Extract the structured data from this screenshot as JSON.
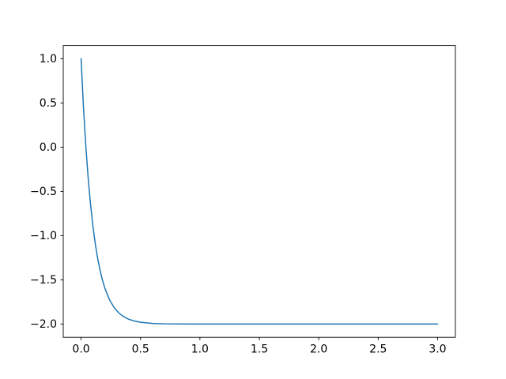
{
  "chart_data": {
    "type": "line",
    "title": "",
    "xlabel": "",
    "ylabel": "",
    "grid": false,
    "legend": null,
    "background_color": "#ffffff",
    "spine_color": "#000000",
    "line_color": "#1f77b4",
    "xlim": [
      -0.15,
      3.15
    ],
    "ylim": [
      -2.15,
      1.15
    ],
    "xticks": [
      0.0,
      0.5,
      1.0,
      1.5,
      2.0,
      2.5,
      3.0
    ],
    "xtick_labels": [
      "0.0",
      "0.5",
      "1.0",
      "1.5",
      "2.0",
      "2.5",
      "3.0"
    ],
    "yticks": [
      1.0,
      0.5,
      0.0,
      -0.5,
      -1.0,
      -1.5,
      -2.0
    ],
    "ytick_labels": [
      "1.0",
      "0.5",
      "0.0",
      "−0.5",
      "−1.0",
      "−1.5",
      "−2.0"
    ],
    "x": [
      0.0,
      0.02,
      0.04,
      0.06,
      0.08,
      0.1,
      0.12,
      0.14,
      0.16,
      0.18,
      0.2,
      0.24,
      0.28,
      0.32,
      0.36,
      0.4,
      0.45,
      0.5,
      0.6,
      0.7,
      0.8,
      0.9,
      1.0,
      1.25,
      1.5,
      2.0,
      2.5,
      3.0
    ],
    "y": [
      1.0,
      0.4562,
      0.011,
      -0.3536,
      -0.652,
      -0.8964,
      -1.0964,
      -1.2602,
      -1.3943,
      -1.5041,
      -1.594,
      -1.7278,
      -1.8176,
      -1.8777,
      -1.918,
      -1.9451,
      -1.9667,
      -1.9798,
      -1.9926,
      -1.9973,
      -1.999,
      -1.9996,
      -1.9999,
      -2.0,
      -2.0,
      -2.0,
      -2.0,
      -2.0
    ]
  }
}
